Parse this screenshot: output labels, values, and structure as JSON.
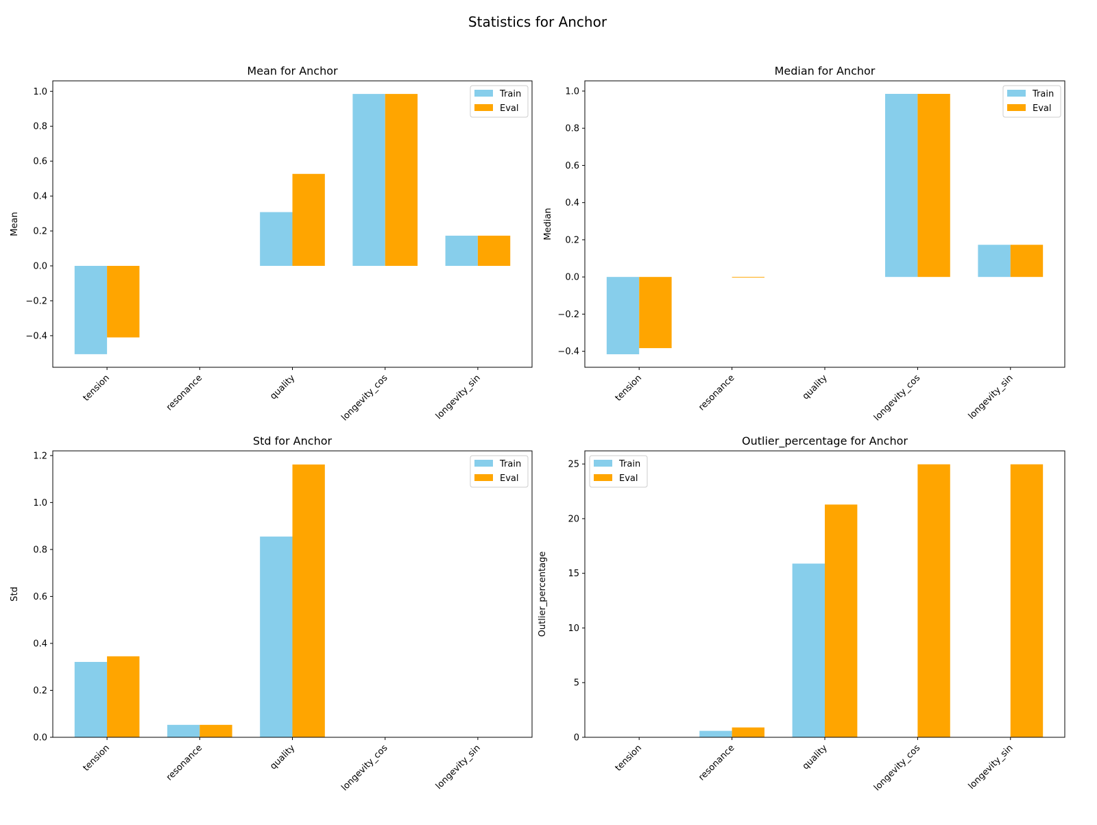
{
  "figure_title": "Statistics for Anchor",
  "colors": {
    "Train": "#87CEEB",
    "Eval": "#FFA500"
  },
  "chart_data": [
    {
      "type": "bar",
      "title": "Mean for Anchor",
      "ylabel": "Mean",
      "categories": [
        "tension",
        "resonance",
        "quality",
        "longevity_cos",
        "longevity_sin"
      ],
      "series": [
        {
          "name": "Train",
          "values": [
            -0.506,
            0.0,
            0.308,
            0.985,
            0.173
          ]
        },
        {
          "name": "Eval",
          "values": [
            -0.41,
            0.0,
            0.527,
            0.985,
            0.173
          ]
        }
      ],
      "ylim": [
        -0.581,
        1.06
      ],
      "yticks": [
        -0.4,
        -0.2,
        0.0,
        0.2,
        0.4,
        0.6,
        0.8,
        1.0
      ],
      "ytick_labels": [
        "−0.4",
        "−0.2",
        "0.0",
        "0.2",
        "0.4",
        "0.6",
        "0.8",
        "1.0"
      ],
      "legend": "top-right",
      "grid": false
    },
    {
      "type": "bar",
      "title": "Median for Anchor",
      "ylabel": "Median",
      "categories": [
        "tension",
        "resonance",
        "quality",
        "longevity_cos",
        "longevity_sin"
      ],
      "series": [
        {
          "name": "Train",
          "values": [
            -0.416,
            0.0,
            0.0,
            0.985,
            0.173
          ]
        },
        {
          "name": "Eval",
          "values": [
            -0.383,
            -0.003,
            0.0,
            0.985,
            0.173
          ]
        }
      ],
      "ylim": [
        -0.486,
        1.055
      ],
      "yticks": [
        -0.4,
        -0.2,
        0.0,
        0.2,
        0.4,
        0.6,
        0.8,
        1.0
      ],
      "ytick_labels": [
        "−0.4",
        "−0.2",
        "0.0",
        "0.2",
        "0.4",
        "0.6",
        "0.8",
        "1.0"
      ],
      "legend": "top-right",
      "grid": false
    },
    {
      "type": "bar",
      "title": "Std for Anchor",
      "ylabel": "Std",
      "categories": [
        "tension",
        "resonance",
        "quality",
        "longevity_cos",
        "longevity_sin"
      ],
      "series": [
        {
          "name": "Train",
          "values": [
            0.321,
            0.053,
            0.855,
            0.0,
            0.0
          ]
        },
        {
          "name": "Eval",
          "values": [
            0.345,
            0.053,
            1.162,
            0.0,
            0.0
          ]
        }
      ],
      "ylim": [
        0,
        1.22
      ],
      "yticks": [
        0.0,
        0.2,
        0.4,
        0.6,
        0.8,
        1.0,
        1.2
      ],
      "ytick_labels": [
        "0.0",
        "0.2",
        "0.4",
        "0.6",
        "0.8",
        "1.0",
        "1.2"
      ],
      "legend": "top-right",
      "grid": false
    },
    {
      "type": "bar",
      "title": "Outlier_percentage for Anchor",
      "ylabel": "Outlier_percentage",
      "categories": [
        "tension",
        "resonance",
        "quality",
        "longevity_cos",
        "longevity_sin"
      ],
      "series": [
        {
          "name": "Train",
          "values": [
            0.0,
            0.59,
            15.89,
            0.0,
            0.0
          ]
        },
        {
          "name": "Eval",
          "values": [
            0.0,
            0.9,
            21.29,
            24.97,
            24.97
          ]
        }
      ],
      "ylim": [
        0,
        26.2
      ],
      "yticks": [
        0,
        5,
        10,
        15,
        20,
        25
      ],
      "ytick_labels": [
        "0",
        "5",
        "10",
        "15",
        "20",
        "25"
      ],
      "legend": "top-left",
      "grid": false
    }
  ]
}
